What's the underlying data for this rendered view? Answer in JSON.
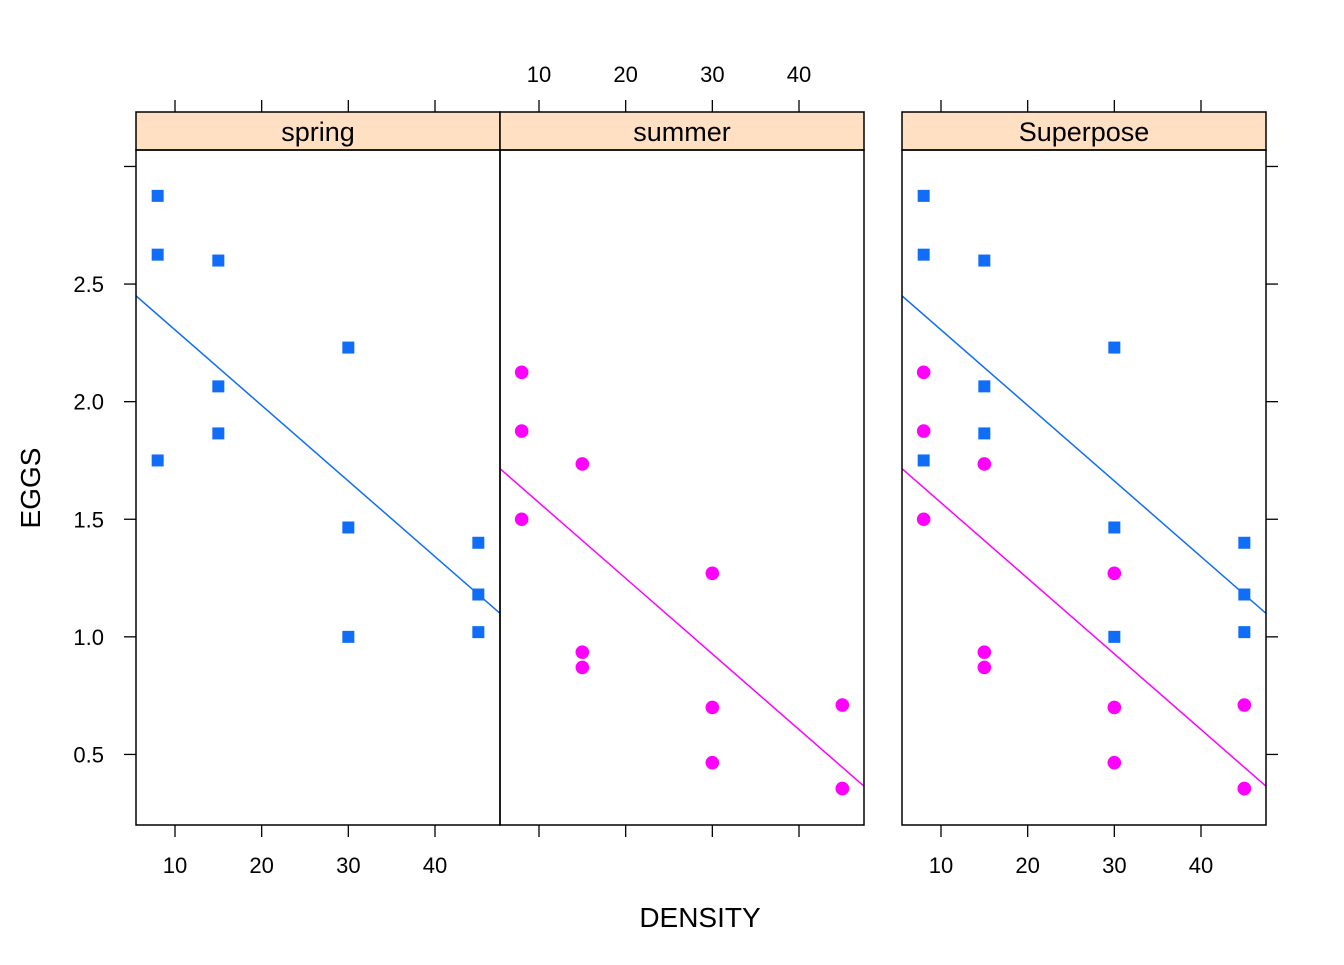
{
  "chart_data": {
    "type": "scatter",
    "xlabel": "DENSITY",
    "ylabel": "EGGS",
    "xlim": [
      5.5,
      47.5
    ],
    "ylim": [
      0.2,
      3.07
    ],
    "x_ticks": [
      10,
      20,
      30,
      40
    ],
    "y_ticks": [
      0.5,
      1.0,
      1.5,
      2.0,
      2.5
    ],
    "y_tick_labels": [
      "0.5",
      "1.0",
      "1.5",
      "2.0",
      "2.5"
    ],
    "strip_color": "#FFE0C2",
    "panels": [
      {
        "label": "spring",
        "series": [
          "spring"
        ]
      },
      {
        "label": "summer",
        "series": [
          "summer"
        ]
      },
      {
        "label": "Superpose",
        "series": [
          "spring",
          "summer"
        ]
      }
    ],
    "series": [
      {
        "key": "spring",
        "color": "#0F6DF7",
        "marker": "square",
        "x": [
          8,
          8,
          8,
          15,
          15,
          15,
          30,
          30,
          30,
          45,
          45,
          45
        ],
        "y": [
          2.875,
          2.625,
          1.75,
          2.6,
          2.065,
          1.865,
          2.23,
          1.465,
          1.0,
          1.4,
          1.18,
          1.02
        ],
        "fit": {
          "x": [
            5.5,
            47.5
          ],
          "y": [
            2.45,
            1.1
          ]
        }
      },
      {
        "key": "summer",
        "color": "#FF00FF",
        "marker": "circle",
        "x": [
          8,
          8,
          8,
          15,
          15,
          15,
          30,
          30,
          30,
          45,
          45,
          45
        ],
        "y": [
          2.125,
          1.875,
          1.5,
          1.735,
          0.935,
          0.87,
          1.27,
          0.7,
          0.465,
          0.71,
          0.355,
          0.355
        ],
        "fit": {
          "x": [
            5.5,
            47.5
          ],
          "y": [
            1.715,
            0.365
          ]
        }
      }
    ]
  }
}
